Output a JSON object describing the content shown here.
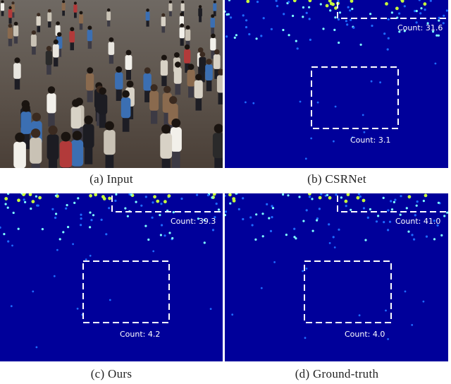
{
  "panels": [
    {
      "id": "input",
      "caption": "(a)  Input"
    },
    {
      "id": "csrnet",
      "caption": "(b)  CSRNet",
      "top_count": "Count: 31.6",
      "box_count": "Count: 3.1"
    },
    {
      "id": "ours",
      "caption": "(c)  Ours",
      "top_count": "Count: 39.3",
      "box_count": "Count: 4.2"
    },
    {
      "id": "gt",
      "caption": "(d)  Ground-truth",
      "top_count": "Count: 41.0",
      "box_count": "Count: 4.0"
    }
  ],
  "colors": {
    "density_bg": "#00009a",
    "dot_core": "#7fffff",
    "dot_glow": "#1e6bff",
    "dot_hot": "#c8ff3c",
    "annotation": "#ffffff"
  }
}
